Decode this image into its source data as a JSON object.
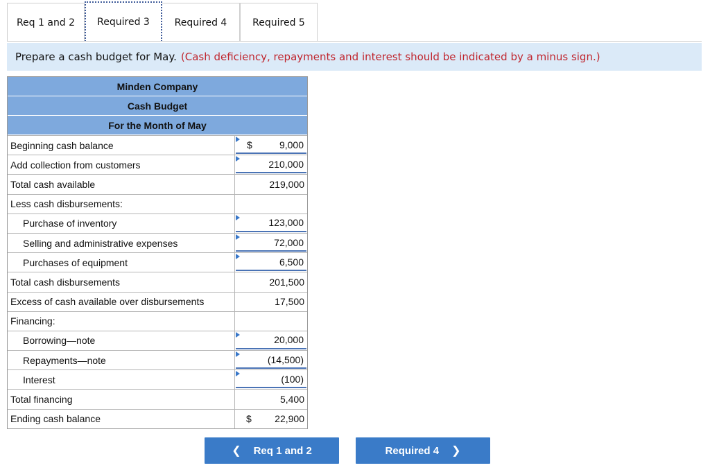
{
  "tabs": [
    {
      "label": "Req 1 and 2"
    },
    {
      "label": "Required 3"
    },
    {
      "label": "Required 4"
    },
    {
      "label": "Required 5"
    }
  ],
  "instruction": {
    "text": "Prepare a cash budget for May.",
    "note": "(Cash deficiency, repayments and interest should be indicated by a minus sign.)"
  },
  "budget": {
    "company": "Minden Company",
    "title": "Cash Budget",
    "period": "For the Month of May",
    "rows": [
      {
        "label": "Beginning cash balance",
        "dollar": "$",
        "value": "9,000"
      },
      {
        "label": "Add collection from customers",
        "dollar": "",
        "value": "210,000"
      },
      {
        "label": "Total cash available",
        "dollar": "",
        "value": "219,000"
      },
      {
        "label": "Less cash disbursements:",
        "dollar": "",
        "value": ""
      },
      {
        "label": "Purchase of inventory",
        "dollar": "",
        "value": "123,000"
      },
      {
        "label": "Selling and administrative expenses",
        "dollar": "",
        "value": "72,000"
      },
      {
        "label": "Purchases of equipment",
        "dollar": "",
        "value": "6,500"
      },
      {
        "label": "Total cash disbursements",
        "dollar": "",
        "value": "201,500"
      },
      {
        "label": "Excess of cash available over disbursements",
        "dollar": "",
        "value": "17,500"
      },
      {
        "label": "Financing:",
        "dollar": "",
        "value": ""
      },
      {
        "label": "Borrowing—note",
        "dollar": "",
        "value": "20,000"
      },
      {
        "label": "Repayments—note",
        "dollar": "",
        "value": "(14,500)"
      },
      {
        "label": "Interest",
        "dollar": "",
        "value": "(100)"
      },
      {
        "label": "Total financing",
        "dollar": "",
        "value": "5,400"
      },
      {
        "label": "Ending cash balance",
        "dollar": "$",
        "value": "22,900"
      }
    ]
  },
  "nav": {
    "prev_label": "Req 1 and 2",
    "next_label": "Required 4",
    "prev_icon": "chevron-left-icon",
    "next_icon": "chevron-right-icon"
  },
  "colors": {
    "header_blue": "#7ea9dd",
    "instruction_bg": "#dbeaf8",
    "note_red": "#c0262e",
    "button_blue": "#3a7bc8"
  }
}
